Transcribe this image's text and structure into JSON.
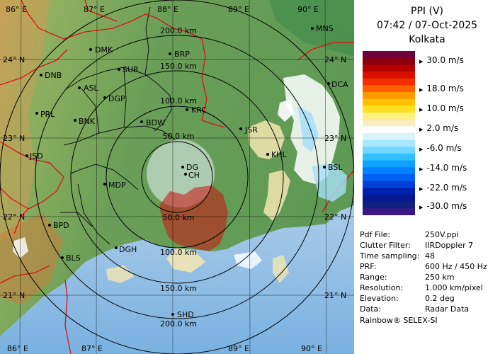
{
  "title": {
    "line1": "PPI (V)",
    "line2": "07:42 / 07-Oct-2025",
    "line3": "Kolkata"
  },
  "map": {
    "lon_labels": [
      "86° E",
      "87° E",
      "88° E",
      "89° E",
      "90° E"
    ],
    "lat_labels": [
      "24° N",
      "23° N",
      "22° N",
      "21° N"
    ],
    "range_labels": [
      "200.0 km",
      "150.0 km",
      "100.0 km",
      "50.0 km",
      "50.0 km",
      "100.0 km",
      "150.0 km",
      "200.0 km"
    ],
    "cities": [
      "MNS",
      "DMK",
      "BRP",
      "DNB",
      "SUR",
      "ASL",
      "DGP",
      "DCA",
      "PRL",
      "BNK",
      "KRC",
      "BDW",
      "JSR",
      "KHL",
      "JSD",
      "DG",
      "CH",
      "BSL",
      "MDP",
      "BPD",
      "DGH",
      "BLS",
      "SHD"
    ]
  },
  "velocity_scale": {
    "unit": "m/s",
    "labels": [
      "30.0 m/s",
      "18.0 m/s",
      "10.0 m/s",
      "2.0 m/s",
      "-6.0 m/s",
      "-14.0 m/s",
      "-22.0 m/s",
      "-30.0 m/s"
    ],
    "colors": [
      "#6e0040",
      "#8a0010",
      "#b40000",
      "#d81000",
      "#f03000",
      "#ff6000",
      "#ff9a00",
      "#ffc000",
      "#ffe020",
      "#fff080",
      "#f8ecc0",
      "#ffffff",
      "#d8f4ff",
      "#a8e8ff",
      "#70d8ff",
      "#30c0ff",
      "#10a0ff",
      "#0080ff",
      "#0060f0",
      "#0040d8",
      "#0020b0",
      "#081890",
      "#102080",
      "#3a1888"
    ]
  },
  "info": [
    {
      "key": "Pdf File:",
      "value": "250V.ppi"
    },
    {
      "key": "Clutter Filter:",
      "value": "IIRDoppler 7"
    },
    {
      "key": "Time sampling:",
      "value": "48"
    },
    {
      "key": "PRF:",
      "value": "600 Hz / 450 Hz"
    },
    {
      "key": "Range:",
      "value": "250 km"
    },
    {
      "key": "Resolution:",
      "value": "1.000 km/pixel"
    },
    {
      "key": "Elevation:",
      "value": "0.2 deg"
    },
    {
      "key": "Data:",
      "value": "Radar Data"
    }
  ],
  "credit": "Rainbow® SELEX-SI"
}
